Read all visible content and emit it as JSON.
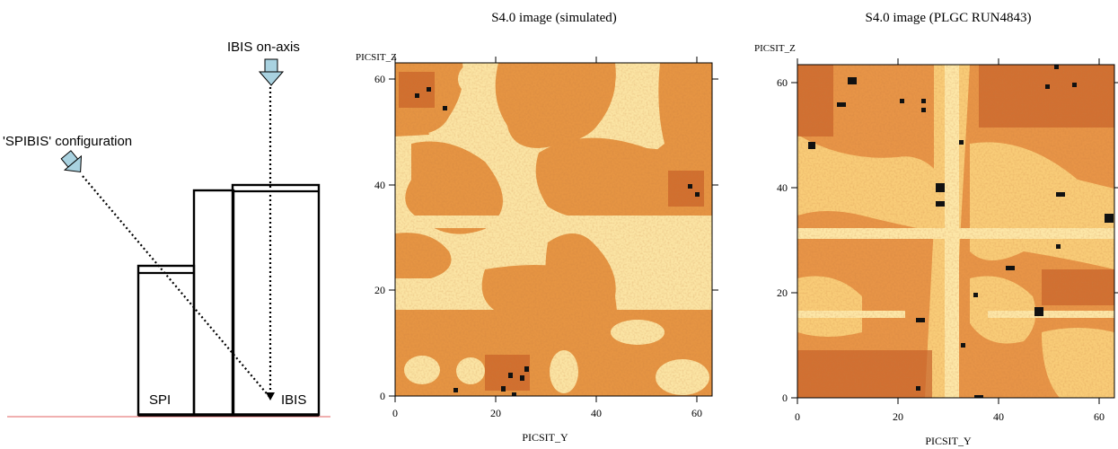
{
  "diagram": {
    "ibis_onaxis_label": "IBIS on-axis",
    "spibis_label": "'SPIBIS' configuration",
    "spi_label": "SPI",
    "ibis_label": "IBIS"
  },
  "panels": [
    {
      "title": "S4.0 image (simulated)",
      "xlabel": "PICSIT_Y",
      "ylabel": "PICSIT_Z",
      "xticks": [
        "0",
        "20",
        "40",
        "60"
      ],
      "yticks": [
        "0",
        "20",
        "40",
        "60"
      ],
      "xlim": [
        0,
        63
      ],
      "ylim": [
        0,
        63
      ]
    },
    {
      "title": "S4.0 image (PLGC RUN4843)",
      "xlabel": "PICSIT_Y",
      "ylabel": "PICSIT_Z",
      "xticks": [
        "0",
        "20",
        "40",
        "60"
      ],
      "yticks": [
        "0",
        "20",
        "40",
        "60"
      ],
      "xlim": [
        0,
        63
      ],
      "ylim": [
        0,
        63
      ]
    }
  ],
  "colors": {
    "light": "#fff2c0",
    "pale": "#fbd98a",
    "mid": "#f3b25f",
    "dark": "#e0802f",
    "deep": "#c35a20",
    "brown": "#8e3014",
    "black": "#111111",
    "ground": "#e06060"
  }
}
